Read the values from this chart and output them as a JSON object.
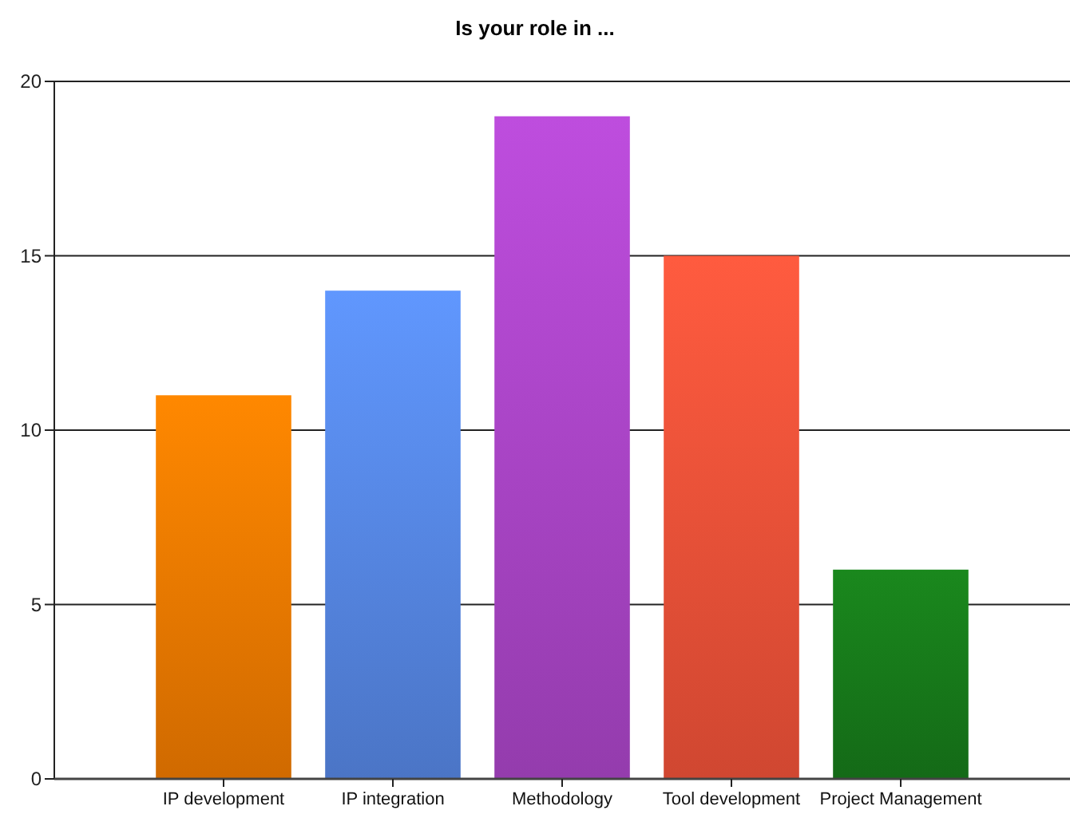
{
  "chart_data": {
    "type": "bar",
    "title": "Is your role in ...",
    "categories": [
      "IP development",
      "IP integration",
      "Methodology",
      "Tool development",
      "Project Management"
    ],
    "values": [
      11,
      14,
      19,
      15,
      6
    ],
    "colors": [
      "#ec7800",
      "#5585e0",
      "#a844c4",
      "#ec5038",
      "#17781a"
    ],
    "ylim": [
      0,
      20
    ],
    "yticks": [
      0,
      5,
      10,
      15,
      20
    ],
    "grid": "y"
  }
}
